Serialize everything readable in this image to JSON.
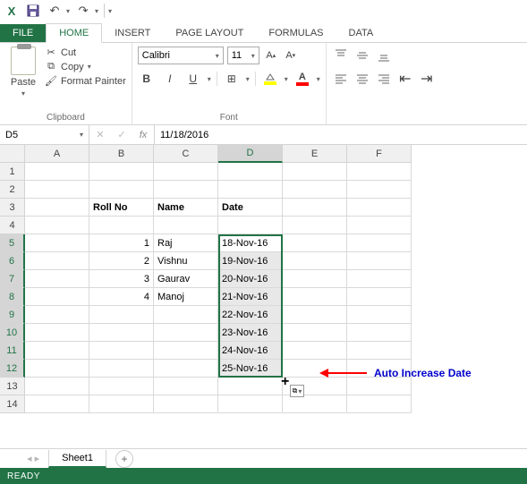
{
  "quickAccess": {
    "xlIcon": "X",
    "saveIcon": "💾",
    "undoIcon": "↶",
    "redoIcon": "↷"
  },
  "tabs": {
    "file": "FILE",
    "home": "HOME",
    "insert": "INSERT",
    "pageLayout": "PAGE LAYOUT",
    "formulas": "FORMULAS",
    "data": "DATA"
  },
  "ribbon": {
    "clipboard": {
      "paste": "Paste",
      "cut": "Cut",
      "copy": "Copy",
      "formatPainter": "Format Painter",
      "groupLabel": "Clipboard"
    },
    "font": {
      "name": "Calibri",
      "size": "11",
      "groupLabel": "Font",
      "fillColor": "#ffff00",
      "fontColor": "#ff0000"
    }
  },
  "nameBox": "D5",
  "formula": "11/18/2016",
  "columns": [
    "A",
    "B",
    "C",
    "D",
    "E",
    "F"
  ],
  "selectedCol": "D",
  "rowCount": 14,
  "selectedRows": [
    5,
    6,
    7,
    8,
    9,
    10,
    11,
    12
  ],
  "gridColors": {
    "selectionBorder": "#217346",
    "selectedCellFill": "#e8e8e8"
  },
  "headers": {
    "rollNo": "Roll No",
    "name": "Name",
    "date": "Date"
  },
  "data": {
    "rollNos": [
      "1",
      "2",
      "3",
      "4"
    ],
    "names": [
      "Raj",
      "Vishnu",
      "Gaurav",
      "Manoj"
    ],
    "dates": [
      "18-Nov-16",
      "19-Nov-16",
      "20-Nov-16",
      "21-Nov-16",
      "22-Nov-16",
      "23-Nov-16",
      "24-Nov-16",
      "25-Nov-16"
    ]
  },
  "annotation": {
    "text": "Auto Increase Date",
    "arrowColor": "#ff0000",
    "textColor": "#0000cc"
  },
  "sheetTab": "Sheet1",
  "statusBar": "READY"
}
